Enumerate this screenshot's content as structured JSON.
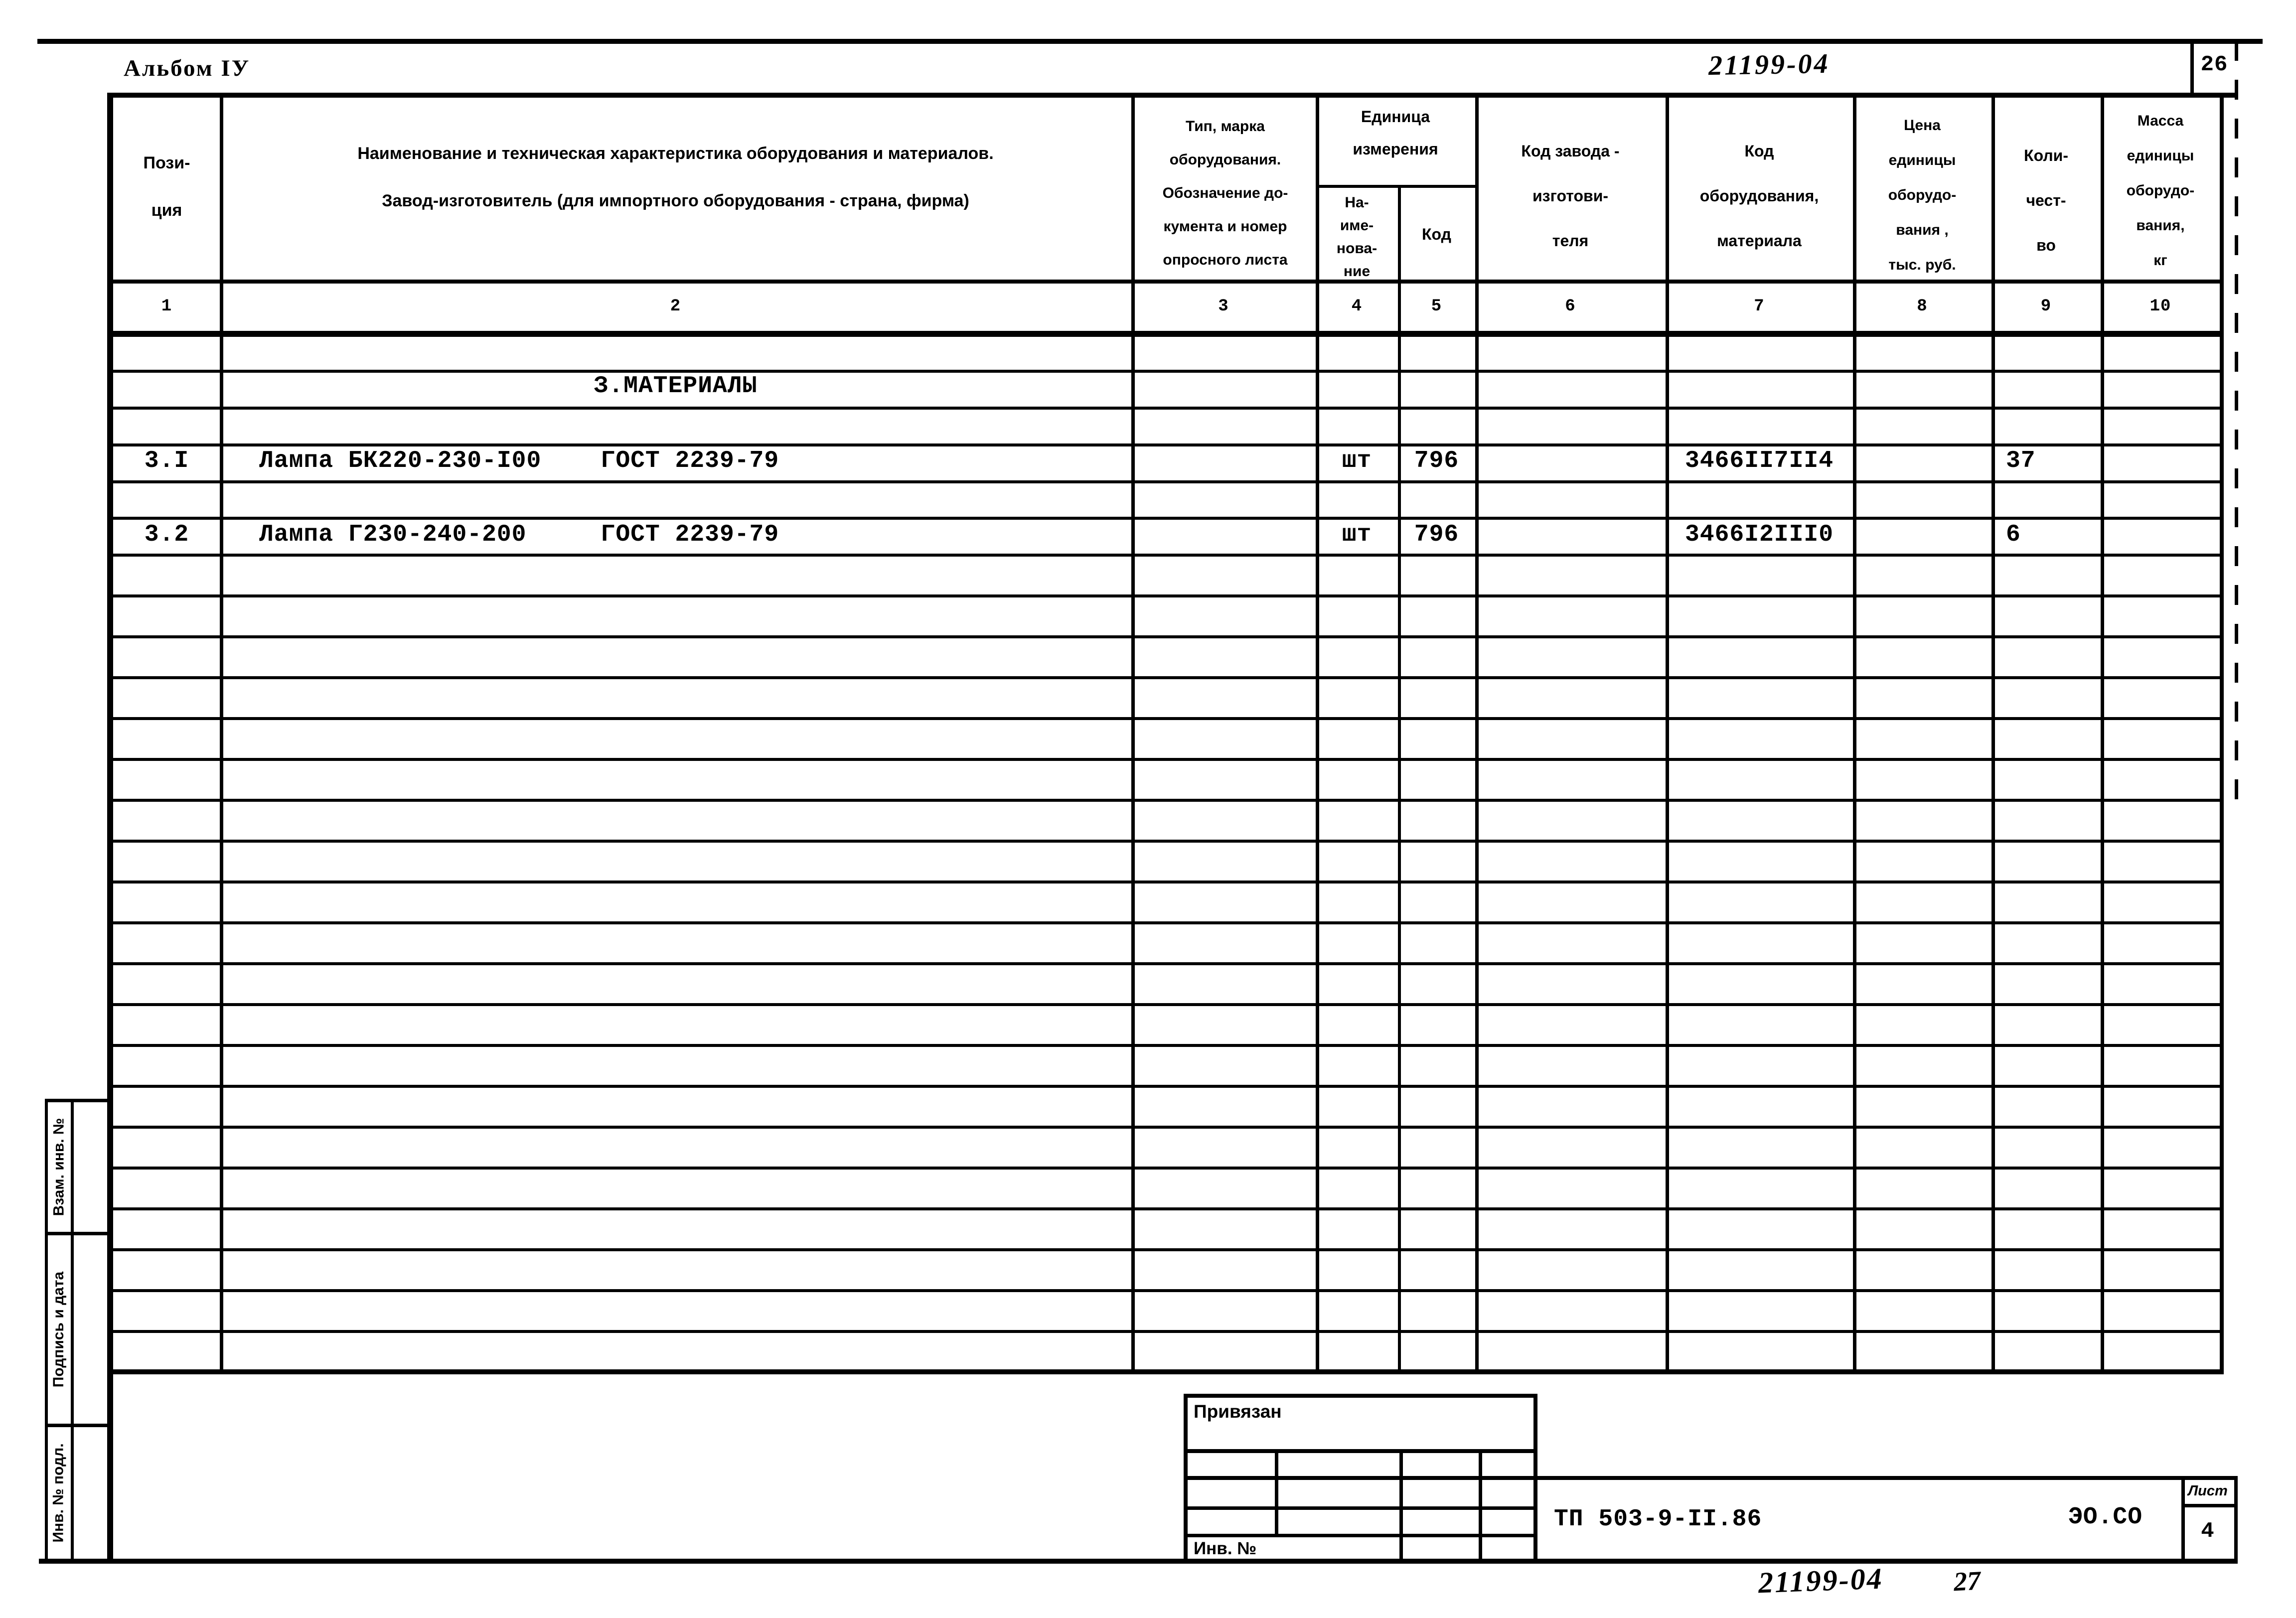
{
  "page": {
    "album": "Альбом IУ",
    "doc_number": "21199-04",
    "sheet_corner_number": "26",
    "footer_doc_number": "21199-04",
    "footer_extra_number": "27"
  },
  "table": {
    "column_numbers": [
      "1",
      "2",
      "3",
      "4",
      "5",
      "6",
      "7",
      "8",
      "9",
      "10"
    ],
    "columns": [
      {
        "header": "Пози-\nция"
      },
      {
        "header": "Наименование и техническая характеристика  оборудования и материалов.\nЗавод-изготовитель  (для импортного оборудования -  страна, фирма)"
      },
      {
        "header": "Тип,   марка\nоборудования.\nОбозначение  до-\nкумента и номер\nопросного листа"
      },
      {
        "header": "На-\nиме-\nнова-\nние"
      },
      {
        "header": "Код"
      },
      {
        "header": "Код завода -\nизготови-\nтеля"
      },
      {
        "header": "Код\nоборудования,\nматериала"
      },
      {
        "header": "Цена\nединицы\nоборудо-\nвания ,\nтыс. руб."
      },
      {
        "header": "Коли-\nчест-\nво"
      },
      {
        "header": "Масса\nединицы\nоборудо-\nвания,\nкг"
      }
    ],
    "unit_group_header": "Единица\nизмерения",
    "section_title": "З.МАТЕРИАЛЫ",
    "rows": [
      {
        "position": "3.I",
        "name": "Лампа БК220-230-I00    ГОСТ 2239-79",
        "unit_name": "шт",
        "unit_code": "796",
        "equipment_code": "3466II7II4",
        "quantity": "37"
      },
      {
        "position": "3.2",
        "name": "Лампа Г230-240-200     ГОСТ 2239-79",
        "unit_name": "шт",
        "unit_code": "796",
        "equipment_code": "3466I2III0",
        "quantity": "6"
      }
    ]
  },
  "margin": {
    "labels": [
      "Взам. инв. №",
      "Подпись и дата",
      "Инв. № подл."
    ]
  },
  "stamp": {
    "linked_label": "Привязан",
    "inv_label": "Инв. №",
    "series": "ТП 503-9-II.86",
    "code": "ЭО.СО",
    "sheet_label": "Лист",
    "sheet_value": "4"
  }
}
